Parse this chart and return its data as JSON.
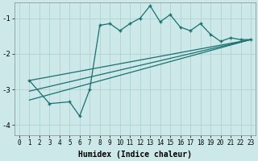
{
  "xlabel": "Humidex (Indice chaleur)",
  "bg_color": "#cce8e8",
  "grid_color": "#aacfcf",
  "line_color": "#1a7070",
  "xlim": [
    -0.5,
    23.5
  ],
  "ylim": [
    -4.3,
    -0.55
  ],
  "yticks": [
    -4,
    -3,
    -2,
    -1
  ],
  "xticks": [
    0,
    1,
    2,
    3,
    4,
    5,
    6,
    7,
    8,
    9,
    10,
    11,
    12,
    13,
    14,
    15,
    16,
    17,
    18,
    19,
    20,
    21,
    22,
    23
  ],
  "series1_x": [
    1,
    3,
    5,
    6,
    7,
    8,
    9,
    10,
    11,
    12,
    13,
    14,
    15,
    16,
    17,
    18,
    19,
    20,
    21,
    22,
    23
  ],
  "series1_y": [
    -2.75,
    -3.4,
    -3.35,
    -3.75,
    -3.0,
    -1.2,
    -1.15,
    -1.35,
    -1.15,
    -1.0,
    -0.65,
    -1.1,
    -0.9,
    -1.25,
    -1.35,
    -1.15,
    -1.45,
    -1.65,
    -1.55,
    -1.6,
    -1.6
  ],
  "line1_x": [
    1,
    23
  ],
  "line1_y": [
    -2.75,
    -1.6
  ],
  "line2_x": [
    1,
    23
  ],
  "line2_y": [
    -3.05,
    -1.6
  ],
  "line3_x": [
    1,
    23
  ],
  "line3_y": [
    -3.3,
    -1.6
  ]
}
